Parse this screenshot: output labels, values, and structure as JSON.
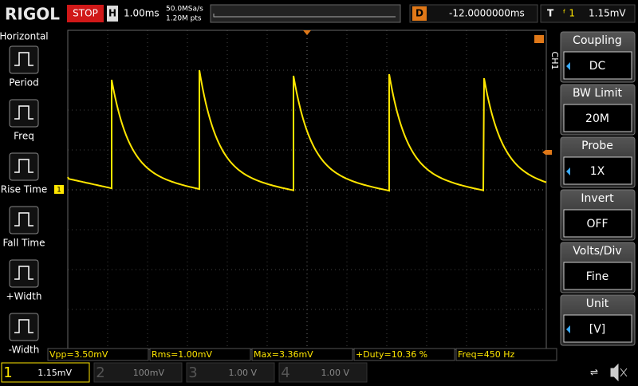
{
  "header": {
    "brand": "RIGOL",
    "status": "STOP",
    "timebase_label": "H",
    "timebase": "1.00ms",
    "sample_rate": "50.0MSa/s",
    "points": "1.20M pts",
    "delay_label": "D",
    "delay": "-12.0000000ms",
    "trigger_label": "T",
    "trigger_level": "1.15mV"
  },
  "left_menu": {
    "title": "Horizontal",
    "items": [
      "Period",
      "Freq",
      "Rise Time",
      "Fall Time",
      "+Width",
      "-Width"
    ]
  },
  "right_menu": {
    "channel": "CH1",
    "items": [
      {
        "label": "Coupling",
        "value": "DC"
      },
      {
        "label": "BW Limit",
        "value": "20M"
      },
      {
        "label": "Probe",
        "value": "1X"
      },
      {
        "label": "Invert",
        "value": "OFF"
      },
      {
        "label": "Volts/Div",
        "value": "Fine"
      },
      {
        "label": "Unit",
        "value": "[V]"
      }
    ]
  },
  "measurements": [
    "Vpp=3.50mV",
    "Rms=1.00mV",
    "Max=3.36mV",
    "+Duty=10.36 %",
    "Freq=450 Hz"
  ],
  "channels": [
    {
      "number": "1",
      "scale": "1.15mV"
    },
    {
      "number": "2",
      "scale": "100mV"
    },
    {
      "number": "3",
      "scale": "1.00 V"
    },
    {
      "number": "4",
      "scale": "1.00 V"
    }
  ]
}
